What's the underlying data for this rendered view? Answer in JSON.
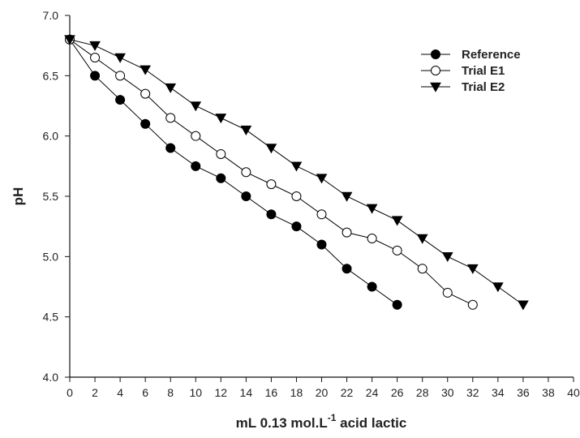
{
  "chart_data": {
    "type": "line",
    "xlabel_parts": {
      "main": "mL 0.13 mol.L",
      "sup": "-1",
      "tail": " acid lactic"
    },
    "ylabel": "pH",
    "xlim": [
      0,
      40
    ],
    "ylim": [
      4.0,
      7.0
    ],
    "xticks": [
      "0",
      "2",
      "4",
      "6",
      "8",
      "10",
      "12",
      "14",
      "16",
      "18",
      "20",
      "22",
      "24",
      "26",
      "28",
      "30",
      "32",
      "34",
      "36",
      "38",
      "40"
    ],
    "yticks": [
      "4.0",
      "4.5",
      "5.0",
      "5.5",
      "6.0",
      "6.5",
      "7.0"
    ],
    "legend_position": "top-right",
    "grid": false,
    "series": [
      {
        "name": "Reference",
        "marker": "filled-circle",
        "x": [
          0,
          2,
          4,
          6,
          8,
          10,
          12,
          14,
          16,
          18,
          20,
          22,
          24,
          26
        ],
        "y": [
          6.8,
          6.5,
          6.3,
          6.1,
          5.9,
          5.75,
          5.65,
          5.5,
          5.35,
          5.25,
          5.1,
          4.9,
          4.75,
          4.6
        ]
      },
      {
        "name": "Trial E1",
        "marker": "open-circle",
        "x": [
          0,
          2,
          4,
          6,
          8,
          10,
          12,
          14,
          16,
          18,
          20,
          22,
          24,
          26,
          28,
          30,
          32
        ],
        "y": [
          6.8,
          6.65,
          6.5,
          6.35,
          6.15,
          6.0,
          5.85,
          5.7,
          5.6,
          5.5,
          5.35,
          5.2,
          5.15,
          5.05,
          4.9,
          4.7,
          4.6
        ]
      },
      {
        "name": "Trial E2",
        "marker": "filled-triangle-down",
        "x": [
          0,
          2,
          4,
          6,
          8,
          10,
          12,
          14,
          16,
          18,
          20,
          22,
          24,
          26,
          28,
          30,
          32,
          34,
          36
        ],
        "y": [
          6.8,
          6.75,
          6.65,
          6.55,
          6.4,
          6.25,
          6.15,
          6.05,
          5.9,
          5.75,
          5.65,
          5.5,
          5.4,
          5.3,
          5.15,
          5.0,
          4.9,
          4.75,
          4.6
        ]
      }
    ]
  }
}
